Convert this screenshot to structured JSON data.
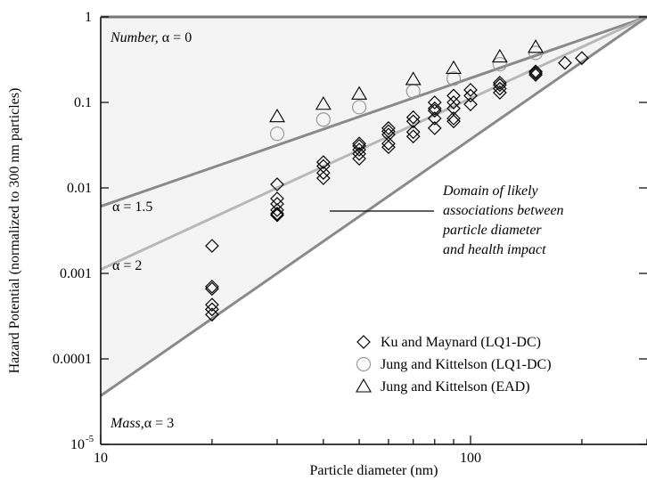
{
  "chart_data": {
    "type": "scatter",
    "title": "",
    "xlabel": "Particle diameter (nm)",
    "ylabel": "Hazard Potential (normalized to 300 nm particles)",
    "xscale": "log",
    "yscale": "log",
    "xlim": [
      10,
      300
    ],
    "ylim": [
      1e-05,
      1
    ],
    "grid": false,
    "legend_position": "bottom-right",
    "x_ticks": [
      {
        "value": 10,
        "label": "10"
      },
      {
        "value": 100,
        "label": "100"
      }
    ],
    "y_ticks": [
      {
        "value": 1,
        "label": "1"
      },
      {
        "value": 0.1,
        "label": "0.1"
      },
      {
        "value": 0.01,
        "label": "0.01"
      },
      {
        "value": 0.001,
        "label": "0.001"
      },
      {
        "value": 0.0001,
        "label": "0.0001"
      }
    ],
    "y_tick_exponent": {
      "value": 1e-05,
      "base": "10",
      "exp": "-5"
    },
    "reference_lines": [
      {
        "alpha": 0,
        "color": "#888888"
      },
      {
        "alpha": 1.5,
        "color": "#8a8a8a"
      },
      {
        "alpha": 2,
        "color": "#b8b8b8"
      },
      {
        "alpha": 3,
        "color": "#8a8a8a"
      }
    ],
    "shaded_region": {
      "between_alpha": [
        0,
        3
      ],
      "color": "#f4f4f4"
    },
    "annotations": [
      {
        "id": "number",
        "italic": "Number,",
        "text": " α = 0"
      },
      {
        "id": "a15",
        "text": "α = 1.5"
      },
      {
        "id": "a2",
        "text": "α = 2"
      },
      {
        "id": "mass",
        "italic": "Mass,",
        "text": "α = 3"
      },
      {
        "id": "domain",
        "lines": [
          "Domain of likely",
          "associations between",
          "particle diameter",
          "and health impact"
        ]
      }
    ],
    "series": [
      {
        "name": "Ku and Maynard (LQ1-DC)",
        "marker": "diamond",
        "points": [
          [
            20,
            0.0021
          ],
          [
            20,
            0.0007
          ],
          [
            20,
            0.00066
          ],
          [
            20,
            0.00043
          ],
          [
            20,
            0.00038
          ],
          [
            20,
            0.00033
          ],
          [
            30,
            0.011
          ],
          [
            30,
            0.0075
          ],
          [
            30,
            0.0065
          ],
          [
            30,
            0.0055
          ],
          [
            30,
            0.005
          ],
          [
            30,
            0.0048
          ],
          [
            40,
            0.02
          ],
          [
            40,
            0.018
          ],
          [
            40,
            0.015
          ],
          [
            40,
            0.013
          ],
          [
            50,
            0.033
          ],
          [
            50,
            0.031
          ],
          [
            50,
            0.028
          ],
          [
            50,
            0.025
          ],
          [
            50,
            0.022
          ],
          [
            60,
            0.05
          ],
          [
            60,
            0.046
          ],
          [
            60,
            0.042
          ],
          [
            60,
            0.033
          ],
          [
            60,
            0.03
          ],
          [
            70,
            0.067
          ],
          [
            70,
            0.06
          ],
          [
            70,
            0.045
          ],
          [
            70,
            0.04
          ],
          [
            80,
            0.1
          ],
          [
            80,
            0.085
          ],
          [
            80,
            0.08
          ],
          [
            80,
            0.065
          ],
          [
            80,
            0.05
          ],
          [
            90,
            0.12
          ],
          [
            90,
            0.1
          ],
          [
            90,
            0.085
          ],
          [
            90,
            0.065
          ],
          [
            90,
            0.06
          ],
          [
            100,
            0.14
          ],
          [
            100,
            0.12
          ],
          [
            100,
            0.095
          ],
          [
            120,
            0.17
          ],
          [
            120,
            0.16
          ],
          [
            120,
            0.145
          ],
          [
            120,
            0.13
          ],
          [
            150,
            0.23
          ],
          [
            150,
            0.22
          ],
          [
            150,
            0.21
          ],
          [
            180,
            0.29
          ],
          [
            200,
            0.33
          ]
        ]
      },
      {
        "name": "Jung and Kittelson (LQ1-DC)",
        "marker": "circle",
        "points": [
          [
            30,
            0.043
          ],
          [
            40,
            0.063
          ],
          [
            50,
            0.088
          ],
          [
            70,
            0.135
          ],
          [
            90,
            0.19
          ],
          [
            120,
            0.28
          ],
          [
            150,
            0.38
          ]
        ]
      },
      {
        "name": "Jung and Kittelson (EAD)",
        "marker": "triangle",
        "points": [
          [
            30,
            0.068
          ],
          [
            40,
            0.095
          ],
          [
            50,
            0.125
          ],
          [
            70,
            0.185
          ],
          [
            90,
            0.25
          ],
          [
            120,
            0.34
          ],
          [
            150,
            0.44
          ]
        ]
      }
    ]
  }
}
